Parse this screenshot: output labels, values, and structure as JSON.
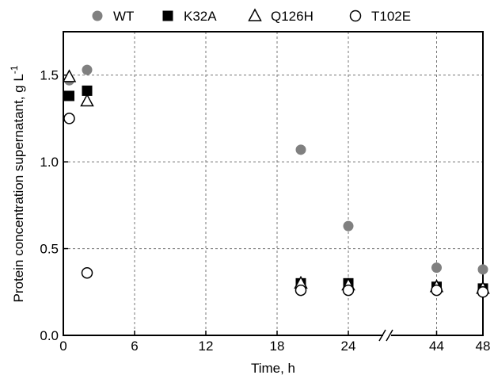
{
  "chart_data": {
    "type": "scatter",
    "xlabel": "Time, h",
    "ylabel_main": "Protein concentration supernatant, g L",
    "ylabel_sup": "-1",
    "x_axis_break": true,
    "x_segment_1": {
      "range": [
        0,
        27
      ],
      "ticks": [
        0,
        6,
        12,
        18,
        24
      ],
      "tick_labels": [
        "0",
        "6",
        "12",
        "18",
        "24"
      ]
    },
    "x_segment_2": {
      "range": [
        40,
        48
      ],
      "ticks": [
        44,
        48
      ],
      "tick_labels": [
        "44",
        "48"
      ]
    },
    "ylim": [
      0,
      1.75
    ],
    "y_ticks": [
      0.0,
      0.5,
      1.0,
      1.5
    ],
    "y_tick_labels": [
      "0.0",
      "0.5",
      "1.0",
      "1.5"
    ],
    "grid": "dashed",
    "legend_position": "top",
    "series": [
      {
        "name": "WT",
        "marker": "filled-circle",
        "color": "#808080",
        "points": [
          {
            "x": 0.5,
            "y": 1.47
          },
          {
            "x": 2,
            "y": 1.53
          },
          {
            "x": 20,
            "y": 1.07
          },
          {
            "x": 24,
            "y": 0.63
          },
          {
            "x": 44,
            "y": 0.39
          },
          {
            "x": 48,
            "y": 0.38
          }
        ]
      },
      {
        "name": "K32A",
        "marker": "filled-square",
        "color": "#000000",
        "points": [
          {
            "x": 0.5,
            "y": 1.38
          },
          {
            "x": 2,
            "y": 1.41
          },
          {
            "x": 20,
            "y": 0.3
          },
          {
            "x": 24,
            "y": 0.3
          },
          {
            "x": 44,
            "y": 0.28
          },
          {
            "x": 48,
            "y": 0.27
          }
        ]
      },
      {
        "name": "Q126H",
        "marker": "open-triangle",
        "color": "#000000",
        "points": [
          {
            "x": 0.5,
            "y": 1.49
          },
          {
            "x": 2,
            "y": 1.35
          },
          {
            "x": 20,
            "y": 0.3
          },
          {
            "x": 24,
            "y": 0.29
          },
          {
            "x": 44,
            "y": 0.28
          },
          {
            "x": 48,
            "y": 0.27
          }
        ]
      },
      {
        "name": "T102E",
        "marker": "open-circle",
        "color": "#000000",
        "points": [
          {
            "x": 0.5,
            "y": 1.25
          },
          {
            "x": 2,
            "y": 0.36
          },
          {
            "x": 20,
            "y": 0.26
          },
          {
            "x": 24,
            "y": 0.26
          },
          {
            "x": 44,
            "y": 0.26
          },
          {
            "x": 48,
            "y": 0.25
          }
        ]
      }
    ]
  }
}
